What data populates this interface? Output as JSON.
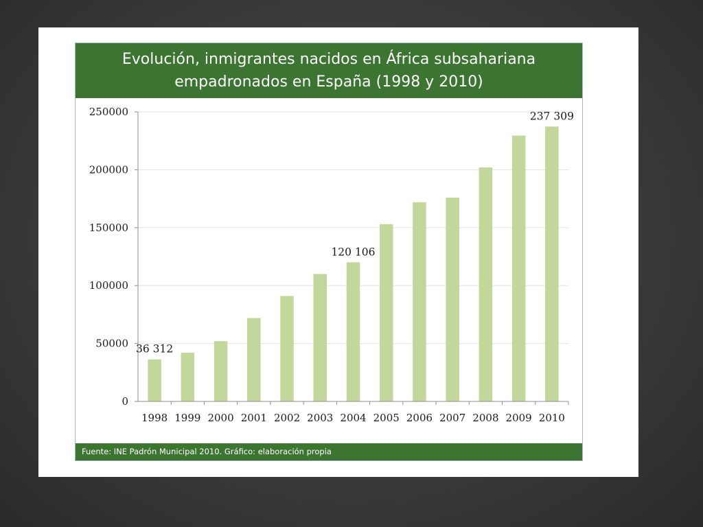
{
  "slide": {
    "title": "Evolución, inmigrantes nacidos en África subsahariana empadronados en España (1998 y 2010)",
    "footer": "Fuente: INE Padrón Municipal 2010. Gráfico: elaboración propia"
  },
  "colors": {
    "title_band": "#3c7431",
    "bar": "#c3d69b",
    "background": "#3a3a3a"
  },
  "chart_data": {
    "type": "bar",
    "title": "Evolución, inmigrantes nacidos en África subsahariana empadronados en España (1998 y 2010)",
    "xlabel": "",
    "ylabel": "",
    "categories": [
      "1998",
      "1999",
      "2000",
      "2001",
      "2002",
      "2003",
      "2004",
      "2005",
      "2006",
      "2007",
      "2008",
      "2009",
      "2010"
    ],
    "values": [
      36312,
      42000,
      52000,
      72000,
      91000,
      110000,
      120106,
      153000,
      172000,
      176000,
      202000,
      229500,
      237309
    ],
    "data_labels": [
      {
        "index": 0,
        "text": "36 312"
      },
      {
        "index": 6,
        "text": "120 106"
      },
      {
        "index": 12,
        "text": "237 309"
      }
    ],
    "ylim": [
      0,
      250000
    ],
    "yticks": [
      0,
      50000,
      100000,
      150000,
      200000,
      250000
    ],
    "ytick_labels": [
      "0",
      "50000",
      "100000",
      "150000",
      "200000",
      "250000"
    ],
    "grid": true,
    "legend": "none"
  }
}
